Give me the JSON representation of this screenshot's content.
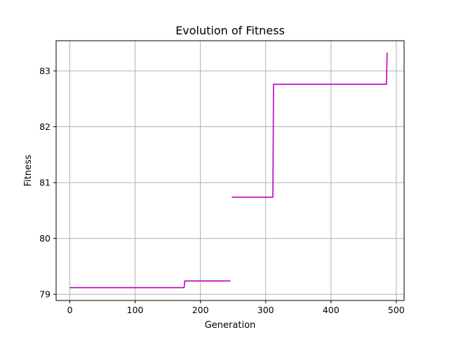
{
  "chart_data": {
    "type": "line",
    "title": "Evolution of Fitness",
    "xlabel": "Generation",
    "ylabel": "Fitness",
    "xlim": [
      -21,
      512
    ],
    "ylim": [
      78.89,
      83.54
    ],
    "xticks": [
      0,
      100,
      200,
      300,
      400,
      500
    ],
    "yticks": [
      79,
      80,
      81,
      82,
      83
    ],
    "grid": true,
    "legend": "none",
    "series": [
      {
        "color": "#c000c0",
        "segments": [
          {
            "x": [
              0,
              143,
              145,
              175,
              176,
              246
            ],
            "y": [
              79.12,
              79.12,
              79.12,
              79.12,
              79.24,
              79.24
            ]
          },
          {
            "x": [
              248,
              254,
              256,
              311,
              312,
              485,
              486
            ],
            "y": [
              80.74,
              80.74,
              80.74,
              80.74,
              82.76,
              82.76,
              83.33
            ]
          }
        ]
      }
    ]
  }
}
